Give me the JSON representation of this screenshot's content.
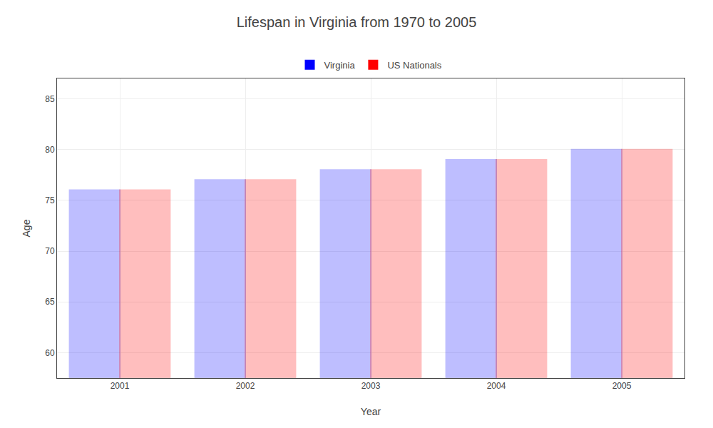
{
  "chart_data": {
    "type": "bar",
    "title": "Lifespan in Virginia from 1970 to 2005",
    "x_label": "Year",
    "y_label": "Age",
    "categories": [
      "2001",
      "2002",
      "2003",
      "2004",
      "2005"
    ],
    "series": [
      {
        "name": "Virginia",
        "color": "#0000ff",
        "values": [
          76,
          77,
          78,
          79,
          80
        ]
      },
      {
        "name": "US Nationals",
        "color": "#ff0000",
        "values": [
          76,
          77,
          78,
          79,
          80
        ]
      }
    ],
    "ylim": [
      57.5,
      87
    ],
    "yticks": [
      60,
      65,
      70,
      75,
      80,
      85
    ],
    "grid": true,
    "legend": "top"
  }
}
